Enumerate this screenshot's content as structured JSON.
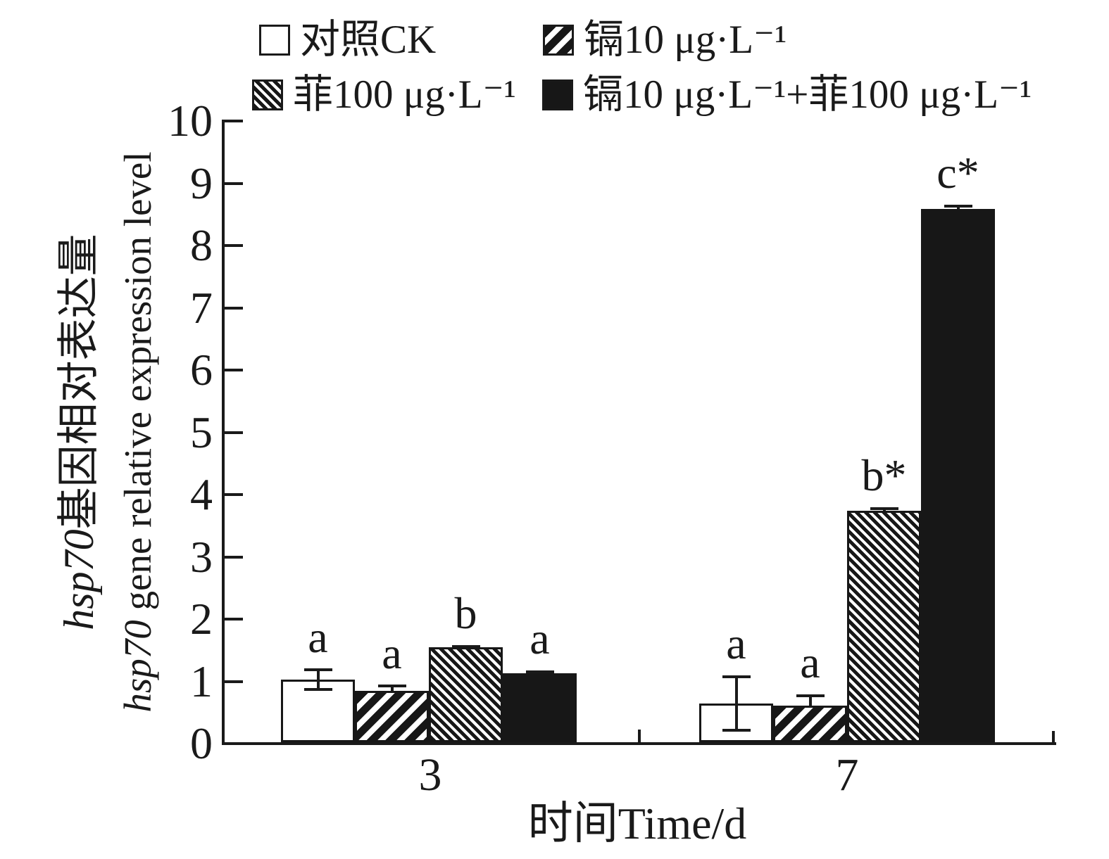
{
  "figure": {
    "xlabel": "时间Time/d",
    "ylabel": {
      "line1": {
        "italic": "hsp70",
        "rest": "基因相对表达量"
      },
      "line2": {
        "italic": "hsp70",
        "rest": " gene relative expression level"
      }
    }
  },
  "legend": {
    "items": [
      {
        "label": "对照CK",
        "pattern": "none"
      },
      {
        "label": "镉10 μg·L⁻¹",
        "pattern": "diag-wide"
      },
      {
        "label": "菲100 μg·L⁻¹",
        "pattern": "diag-fine"
      },
      {
        "label": "镉10 μg·L⁻¹+菲100 μg·L⁻¹",
        "pattern": "solid"
      }
    ]
  },
  "axes": {
    "yticks": [
      "0",
      "1",
      "2",
      "3",
      "4",
      "5",
      "6",
      "7",
      "8",
      "9",
      "10"
    ],
    "xticks": [
      "3",
      "7"
    ]
  },
  "colors": {
    "ink": "#1a1a1a",
    "background": "#ffffff"
  },
  "chart_data": {
    "type": "bar",
    "title": "",
    "xlabel": "时间Time/d",
    "ylabel": "hsp70基因相对表达量 / hsp70 gene relative expression level",
    "ylim": [
      0,
      10
    ],
    "yticks": [
      0,
      1,
      2,
      3,
      4,
      5,
      6,
      7,
      8,
      9,
      10
    ],
    "grid": false,
    "legend_position": "top",
    "categories": [
      "3",
      "7"
    ],
    "series": [
      {
        "name": "对照CK",
        "pattern": "none",
        "values": [
          1.0,
          0.62
        ],
        "errors": [
          0.18,
          0.45
        ],
        "letters": [
          "a",
          "a"
        ]
      },
      {
        "name": "镉10 μg·L⁻¹",
        "pattern": "diag-wide",
        "values": [
          0.82,
          0.59
        ],
        "errors": [
          0.1,
          0.18
        ],
        "letters": [
          "a",
          "a"
        ]
      },
      {
        "name": "菲100 μg·L⁻¹",
        "pattern": "diag-fine",
        "values": [
          1.52,
          3.72
        ],
        "errors": [
          0.04,
          0.05
        ],
        "letters": [
          "b",
          "b*"
        ]
      },
      {
        "name": "镉10 μg·L⁻¹+菲100 μg·L⁻¹",
        "pattern": "solid",
        "values": [
          1.11,
          8.57
        ],
        "errors": [
          0.04,
          0.06
        ],
        "letters": [
          "a",
          "c*"
        ]
      }
    ]
  }
}
